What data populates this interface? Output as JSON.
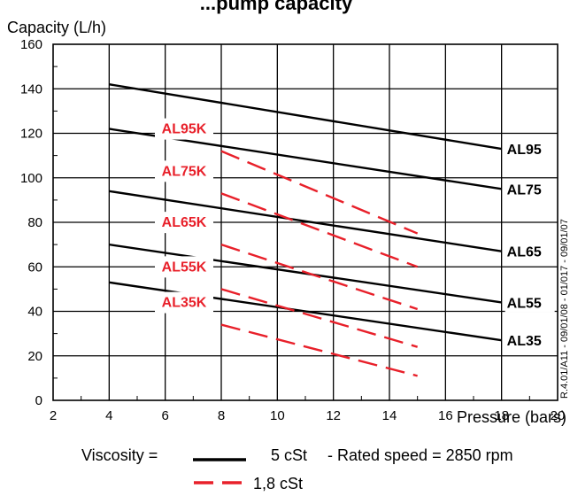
{
  "chart_data": {
    "type": "line",
    "title": "...pump capacity",
    "ylabel": "Capacity (L/h)",
    "xlabel": "Pressure (bars)",
    "xlim": [
      2,
      20
    ],
    "ylim": [
      0,
      160
    ],
    "x_ticks": [
      2,
      4,
      6,
      8,
      10,
      12,
      14,
      16,
      18,
      20
    ],
    "y_ticks": [
      0,
      20,
      40,
      60,
      80,
      100,
      120,
      140,
      160
    ],
    "grid": true,
    "series": [
      {
        "name": "AL95",
        "style": "solid",
        "color": "#000000",
        "x": [
          4,
          18
        ],
        "y": [
          142,
          113
        ]
      },
      {
        "name": "AL75",
        "style": "solid",
        "color": "#000000",
        "x": [
          4,
          18
        ],
        "y": [
          122,
          95
        ]
      },
      {
        "name": "AL65",
        "style": "solid",
        "color": "#000000",
        "x": [
          4,
          18
        ],
        "y": [
          94,
          67
        ]
      },
      {
        "name": "AL55",
        "style": "solid",
        "color": "#000000",
        "x": [
          4,
          18
        ],
        "y": [
          70,
          44
        ]
      },
      {
        "name": "AL35",
        "style": "solid",
        "color": "#000000",
        "x": [
          4,
          18
        ],
        "y": [
          53,
          27
        ]
      },
      {
        "name": "AL95K",
        "style": "dashed",
        "color": "#e8202a",
        "x": [
          8,
          15
        ],
        "y": [
          112,
          75
        ]
      },
      {
        "name": "AL75K",
        "style": "dashed",
        "color": "#e8202a",
        "x": [
          8,
          15
        ],
        "y": [
          93,
          60
        ]
      },
      {
        "name": "AL65K",
        "style": "dashed",
        "color": "#e8202a",
        "x": [
          8,
          15
        ],
        "y": [
          70,
          41
        ]
      },
      {
        "name": "AL55K",
        "style": "dashed",
        "color": "#e8202a",
        "x": [
          8,
          15
        ],
        "y": [
          50,
          24
        ]
      },
      {
        "name": "AL35K",
        "style": "dashed",
        "color": "#e8202a",
        "x": [
          8,
          15
        ],
        "y": [
          34,
          11
        ]
      }
    ],
    "annotations": {
      "side_note": "R.4.01/A11 - 09/01/08 - 01/017 - 09/01/07"
    },
    "legend": {
      "prefix": "Viscosity =",
      "solid_label": "5 cSt",
      "dashed_label": "1,8 cSt",
      "rated_speed": "- Rated speed = 2850 rpm"
    }
  }
}
